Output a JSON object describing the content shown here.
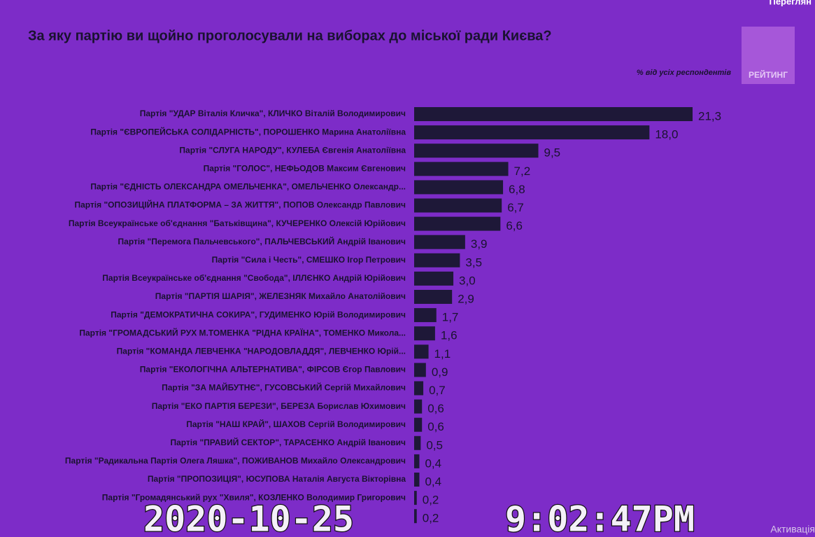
{
  "chart_data": {
    "type": "bar",
    "orientation": "horizontal",
    "title": "За яку партію ви щойно проголосували на виборах до міської ради Києва?",
    "subtitle": "% від усіх респондентів",
    "color": "#1e1838",
    "categories": [
      "Партія \"УДАР Віталія Кличка\", КЛИЧКО Віталій Володимирович",
      "Партія \"ЄВРОПЕЙСЬКА СОЛІДАРНІСТЬ\", ПОРОШЕНКО Марина Анатоліївна",
      "Партія \"СЛУГА НАРОДУ\", КУЛЕБА Євгенія Анатоліївна",
      "Партія \"ГОЛОС\", НЕФЬОДОВ Максим Євгенович",
      "Партія \"ЄДНІСТЬ ОЛЕКСАНДРА ОМЕЛЬЧЕНКА\", ОМЕЛЬЧЕНКО Олександр...",
      "Партія \"ОПОЗИЦІЙНА ПЛАТФОРМА – ЗА ЖИТТЯ\", ПОПОВ Олександр Павлович",
      "Партія Всеукраїнське об'єднання \"Батьківщина\", КУЧЕРЕНКО Олексій Юрійович",
      "Партія \"Перемога Пальчевського\", ПАЛЬЧЕВСЬКИЙ Андрій Іванович",
      "Партія \"Сила і Честь\", СМЕШКО Ігор Петрович",
      "Партія Всеукраїнське об'єднання \"Свобода\", ІЛЛЄНКО Андрій Юрійович",
      "Партія \"ПАРТІЯ ШАРІЯ\", ЖЕЛЕЗНЯК Михайло Анатолійович",
      "Партія \"ДЕМОКРАТИЧНА СОКИРА\", ГУДИМЕНКО Юрій Володимирович",
      "Партія \"ГРОМАДСЬКИЙ РУХ М.ТОМЕНКА \"РІДНА КРАЇНА\", ТОМЕНКО Микола...",
      "Партія \"КОМАНДА ЛЕВЧЕНКА \"НАРОДОВЛАДДЯ\", ЛЕВЧЕНКО Юрій...",
      "Партія \"ЕКОЛОГІЧНА АЛЬТЕРНАТИВА\", ФІРСОВ Єгор Павлович",
      "Партія \"ЗА МАЙБУТНЄ\", ГУСОВСЬКИЙ Сергій Михайлович",
      "Партія \"ЕКО ПАРТІЯ БЕРЕЗИ\", БЕРЕЗА Борислав Юхимович",
      "Партія \"НАШ КРАЙ\", ШАХОВ Сергій Володимирович",
      "Партія \"ПРАВИЙ СЕКТОР\", ТАРАСЕНКО Андрій Іванович",
      "Партія \"Радикальна Партія Олега Ляшка\", ПОЖИВАНОВ Михайло Олександрович",
      "Партія \"ПРОПОЗИЦІЯ\", ЮСУПОВА Наталія Августа Вікторівна",
      "Партія \"Громадянський рух \"Хвиля\", КОЗЛЕНКО Володимир Григорович",
      null
    ],
    "values": [
      21.3,
      18.0,
      9.5,
      7.2,
      6.8,
      6.7,
      6.6,
      3.9,
      3.5,
      3.0,
      2.9,
      1.7,
      1.6,
      1.1,
      0.9,
      0.7,
      0.6,
      0.6,
      0.5,
      0.4,
      0.4,
      0.2,
      0.2
    ],
    "value_labels": [
      "21,3",
      "18,0",
      "9,5",
      "7,2",
      "6,8",
      "6,7",
      "6,6",
      "3,9",
      "3,5",
      "3,0",
      "2,9",
      "1,7",
      "1,6",
      "1,1",
      "0,9",
      "0,7",
      "0,6",
      "0,6",
      "0,5",
      "0,4",
      "0,4",
      "0,2",
      "0,2"
    ]
  },
  "overlay": {
    "date": "2020-10-25",
    "time": "9:02:47PM",
    "logo": "РЕЙТИНГ",
    "top_right": "Переглян",
    "bottom_right": "Активація"
  }
}
